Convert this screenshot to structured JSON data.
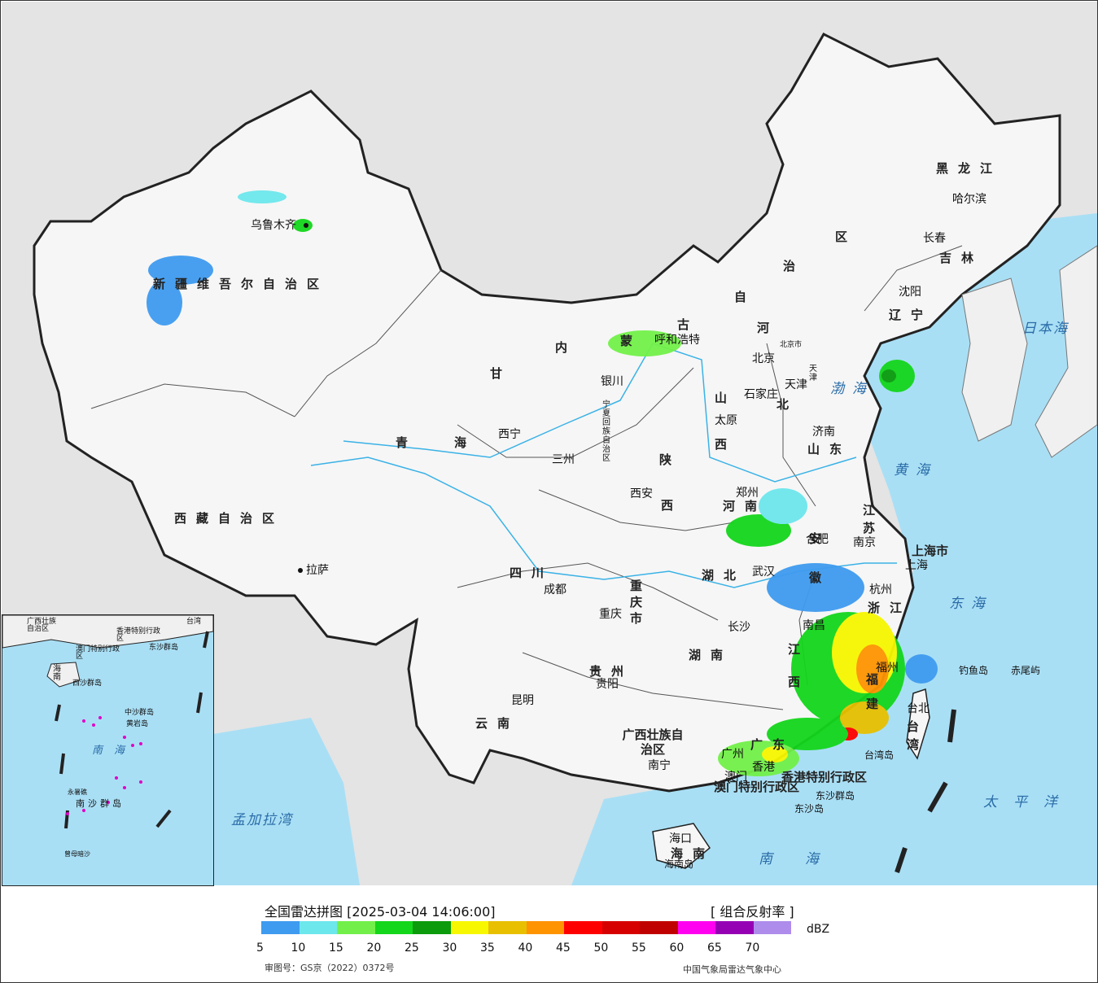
{
  "map": {
    "provinces": [
      {
        "id": "xinjiang",
        "label": "新疆维吾尔自治区"
      },
      {
        "id": "xizang",
        "label": "西藏自治区"
      },
      {
        "id": "qinghai_a",
        "label": "青"
      },
      {
        "id": "qinghai_b",
        "label": "海"
      },
      {
        "id": "gansu",
        "label": "甘"
      },
      {
        "id": "neimeng_1",
        "label": "内"
      },
      {
        "id": "neimeng_2",
        "label": "蒙"
      },
      {
        "id": "neimeng_3",
        "label": "古"
      },
      {
        "id": "neimeng_4",
        "label": "自"
      },
      {
        "id": "neimeng_5",
        "label": "治"
      },
      {
        "id": "neimeng_6",
        "label": "区"
      },
      {
        "id": "heilongjiang",
        "label": "黑龙江"
      },
      {
        "id": "jilin",
        "label": "吉林"
      },
      {
        "id": "liaoning",
        "label": "辽宁"
      },
      {
        "id": "hebei_a",
        "label": "河"
      },
      {
        "id": "hebei_b",
        "label": "北"
      },
      {
        "id": "shanxi_a",
        "label": "山"
      },
      {
        "id": "shanxi_b",
        "label": "西"
      },
      {
        "id": "shandong",
        "label": "山东"
      },
      {
        "id": "henan",
        "label": "河南"
      },
      {
        "id": "shaanxi_a",
        "label": "陕"
      },
      {
        "id": "shaanxi_b",
        "label": "西"
      },
      {
        "id": "sichuan",
        "label": "四川"
      },
      {
        "id": "chongqing",
        "label": "重庆市"
      },
      {
        "id": "hubei",
        "label": "湖北"
      },
      {
        "id": "hunan",
        "label": "湖南"
      },
      {
        "id": "guizhou",
        "label": "贵州"
      },
      {
        "id": "yunnan",
        "label": "云南"
      },
      {
        "id": "guangxi",
        "label": "广西壮族自治区"
      },
      {
        "id": "guangdong",
        "label": "广东"
      },
      {
        "id": "jiangxi",
        "label": "江西"
      },
      {
        "id": "fujian",
        "label": "福建"
      },
      {
        "id": "zhejiang",
        "label": "浙江"
      },
      {
        "id": "jiangsu",
        "label": "江苏"
      },
      {
        "id": "anhui",
        "label": "安徽"
      },
      {
        "id": "shanghai",
        "label": "上海市"
      },
      {
        "id": "taiwan",
        "label": "台湾"
      },
      {
        "id": "hainan",
        "label": "海南"
      },
      {
        "id": "ningxia",
        "label": "宁夏回族自治区"
      },
      {
        "id": "hk",
        "label": "香港特别行政区"
      },
      {
        "id": "macau",
        "label": "澳门特别行政区"
      }
    ],
    "cities": [
      {
        "id": "urumqi",
        "label": "乌鲁木齐"
      },
      {
        "id": "lhasa",
        "label": "拉萨"
      },
      {
        "id": "xining",
        "label": "西宁"
      },
      {
        "id": "lanzhou",
        "label": "三州"
      },
      {
        "id": "yinchuan",
        "label": "银川"
      },
      {
        "id": "hohhot",
        "label": "呼和浩特"
      },
      {
        "id": "beijing",
        "label": "北京"
      },
      {
        "id": "beijingshi",
        "label": "北京市"
      },
      {
        "id": "tianjin",
        "label": "天津"
      },
      {
        "id": "tianjinshi",
        "label": "天津"
      },
      {
        "id": "shijiazhuang",
        "label": "石家庄"
      },
      {
        "id": "taiyuan",
        "label": "太原"
      },
      {
        "id": "jinan",
        "label": "济南"
      },
      {
        "id": "zhengzhou",
        "label": "郑州"
      },
      {
        "id": "xian",
        "label": "西安"
      },
      {
        "id": "hefei",
        "label": "合肥"
      },
      {
        "id": "nanjing",
        "label": "南京"
      },
      {
        "id": "shanghai",
        "label": "上海"
      },
      {
        "id": "hangzhou",
        "label": "杭州"
      },
      {
        "id": "wuhan",
        "label": "武汉"
      },
      {
        "id": "chengdu",
        "label": "成都"
      },
      {
        "id": "chongqing",
        "label": "重庆"
      },
      {
        "id": "changsha",
        "label": "长沙"
      },
      {
        "id": "nanchang",
        "label": "南昌"
      },
      {
        "id": "fuzhou",
        "label": "福州"
      },
      {
        "id": "guiyang",
        "label": "贵阳"
      },
      {
        "id": "kunming",
        "label": "昆明"
      },
      {
        "id": "nanning",
        "label": "南宁"
      },
      {
        "id": "guangzhou",
        "label": "广州"
      },
      {
        "id": "hongkong",
        "label": "香港"
      },
      {
        "id": "macau",
        "label": "澳门"
      },
      {
        "id": "haikou",
        "label": "海口"
      },
      {
        "id": "taibei",
        "label": "台北"
      },
      {
        "id": "shenyang",
        "label": "沈阳"
      },
      {
        "id": "changchun",
        "label": "长春"
      },
      {
        "id": "harbin",
        "label": "哈尔滨"
      }
    ],
    "seas": [
      {
        "id": "bohai",
        "label": "渤海"
      },
      {
        "id": "huanghai",
        "label": "黄海"
      },
      {
        "id": "donghai",
        "label": "东海"
      },
      {
        "id": "nanhai",
        "label": "南海"
      },
      {
        "id": "riben",
        "label": "日本海"
      },
      {
        "id": "taipingyang",
        "label": "太平洋"
      },
      {
        "id": "mengjiala",
        "label": "孟加拉湾"
      }
    ],
    "islands": [
      {
        "id": "diaoyu",
        "label": "钓鱼岛"
      },
      {
        "id": "chiwei",
        "label": "赤尾屿"
      },
      {
        "id": "taiwan_island",
        "label": "台湾岛"
      },
      {
        "id": "dongsha_qundao",
        "label": "东沙群岛"
      },
      {
        "id": "dongsha_dao",
        "label": "东沙岛"
      },
      {
        "id": "hainan_island",
        "label": "海南岛"
      }
    ],
    "inset": {
      "labels": [
        {
          "id": "in_guangxi",
          "label": "广西壮族自治区"
        },
        {
          "id": "in_taiwan",
          "label": "台湾"
        },
        {
          "id": "in_hk",
          "label": "香港特别行政区"
        },
        {
          "id": "in_macau",
          "label": "澳门特别行政区"
        },
        {
          "id": "in_dongsha",
          "label": "东沙群岛"
        },
        {
          "id": "in_hainan",
          "label": "海南"
        },
        {
          "id": "in_xisha",
          "label": "西沙群岛"
        },
        {
          "id": "in_zhongsha",
          "label": "中沙群岛"
        },
        {
          "id": "in_huangyan",
          "label": "黄岩岛"
        },
        {
          "id": "in_nanhai",
          "label": "南海"
        },
        {
          "id": "in_nansha",
          "label": "南沙群岛"
        },
        {
          "id": "in_yongshu",
          "label": "永暑礁"
        },
        {
          "id": "in_zengmu",
          "label": "曾母暗沙"
        }
      ]
    }
  },
  "legend": {
    "title": "全国雷达拼图 [2025-03-04 14:06:00]",
    "product": "[ 组合反射率 ]",
    "unit": "dBZ",
    "colors": [
      "#3f9bef",
      "#6ce7ec",
      "#72f049",
      "#14d61b",
      "#0c9b0c",
      "#f7f700",
      "#e8c000",
      "#ff9300",
      "#ff0000",
      "#d60000",
      "#c00000",
      "#ff00f0",
      "#9600b4",
      "#ae8ceb"
    ],
    "ticks": [
      "5",
      "10",
      "15",
      "20",
      "25",
      "30",
      "35",
      "40",
      "45",
      "50",
      "55",
      "60",
      "65",
      "70"
    ],
    "review_number": "审图号：GS京（2022）0372号",
    "agency": "中国气象局雷达气象中心"
  }
}
